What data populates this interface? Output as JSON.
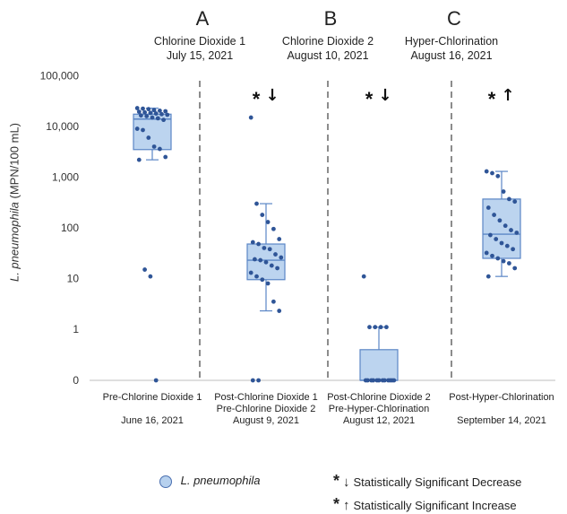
{
  "chart_data": {
    "type": "box",
    "ylabel_italic": "L. pneumophila",
    "ylabel_rest": " (MPN/100 mL)",
    "y_scale": "log",
    "y_ticks": [
      "0",
      "1",
      "10",
      "100",
      "1,000",
      "10,000",
      "100,000"
    ],
    "ylim": [
      0,
      100000
    ],
    "treatments": [
      {
        "letter": "A",
        "name": "Chlorine Dioxide 1",
        "date": "July 15, 2021"
      },
      {
        "letter": "B",
        "name": "Chlorine Dioxide 2",
        "date": "August 10, 2021"
      },
      {
        "letter": "C",
        "name": "Hyper-Chlorination",
        "date": "August 16, 2021"
      }
    ],
    "categories": [
      {
        "label_lines": [
          "Pre-Chlorine Dioxide 1"
        ],
        "date": "June 16, 2021",
        "box": {
          "whisker_low": 2200,
          "q1": 3500,
          "median": 14000,
          "q3": 17500,
          "whisker_high": 23000
        },
        "points": [
          23000,
          22500,
          22000,
          21000,
          20500,
          20000,
          19500,
          19000,
          18500,
          18000,
          17500,
          17000,
          16500,
          16000,
          15000,
          14500,
          13500,
          9000,
          8500,
          6000,
          4000,
          3600,
          2500,
          2200,
          15,
          11,
          0
        ],
        "significance": null
      },
      {
        "label_lines": [
          "Post-Chlorine Dioxide 1",
          "Pre-Chlorine Dioxide 2"
        ],
        "date": "August 9, 2021",
        "box": {
          "whisker_low": 2.3,
          "q1": 9.5,
          "median": 23,
          "q3": 48,
          "whisker_high": 300
        },
        "points": [
          15000,
          300,
          180,
          130,
          95,
          60,
          52,
          48,
          40,
          38,
          30,
          26,
          24,
          23,
          21,
          18,
          16,
          13,
          11,
          9.5,
          8,
          3.5,
          2.3,
          0,
          0
        ],
        "significance": "decrease"
      },
      {
        "label_lines": [
          "Post-Chlorine Dioxide 2",
          "Pre-Hyper-Chlorination"
        ],
        "date": "August 12, 2021",
        "box": {
          "whisker_low": 0,
          "q1": 0,
          "median": 0,
          "q3": 0.6,
          "whisker_high": 1.1
        },
        "points": [
          11,
          1.1,
          1.1,
          1.1,
          1.1,
          0,
          0,
          0,
          0,
          0,
          0,
          0,
          0,
          0,
          0,
          0,
          0
        ],
        "significance": "decrease"
      },
      {
        "label_lines": [
          "Post-Hyper-Chlorination"
        ],
        "date": "September 14, 2021",
        "box": {
          "whisker_low": 11,
          "q1": 25,
          "median": 75,
          "q3": 370,
          "whisker_high": 1300
        },
        "points": [
          1300,
          1200,
          1050,
          520,
          370,
          330,
          250,
          180,
          140,
          110,
          90,
          80,
          72,
          60,
          50,
          44,
          38,
          32,
          28,
          25,
          22,
          20,
          16,
          11
        ],
        "significance": "increase"
      }
    ],
    "legend": {
      "series_name": "L. pneumophila",
      "decrease_label": "Statistically Significant Decrease",
      "increase_label": "Statistically Significant Increase"
    },
    "colors": {
      "box_fill": "#bcd4ef",
      "box_stroke": "#5b86c6",
      "point": "#2f5597",
      "divider": "#8c8c8c",
      "axis": "#bfbfbf"
    }
  }
}
